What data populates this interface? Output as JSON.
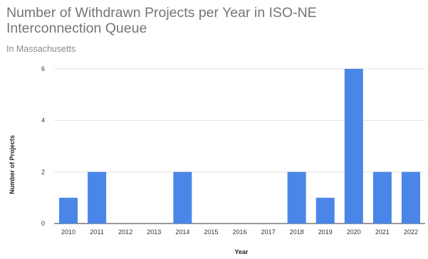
{
  "chart_data": {
    "type": "bar",
    "title": "Number of Withdrawn Projects per Year in ISO-NE Interconnection Queue",
    "subtitle": "In Massachusetts",
    "xlabel": "Year",
    "ylabel": "Number of Projects",
    "categories": [
      "2010",
      "2011",
      "2012",
      "2013",
      "2014",
      "2015",
      "2016",
      "2017",
      "2018",
      "2019",
      "2020",
      "2021",
      "2022"
    ],
    "values": [
      1,
      2,
      0,
      0,
      2,
      0,
      0,
      0,
      2,
      1,
      6,
      2,
      2
    ],
    "ylim": [
      0,
      6
    ],
    "yticks": [
      "0",
      "2",
      "4",
      "6"
    ],
    "grid": true,
    "bar_color": "#4a86e8",
    "grid_color": "#e0e0e0",
    "baseline_color": "#333333"
  }
}
